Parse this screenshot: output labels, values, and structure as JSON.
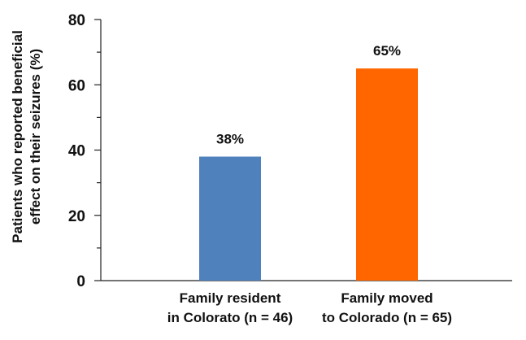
{
  "chart_data": {
    "type": "bar",
    "categories": [
      [
        "Family resident",
        "in Colorato (n = 46)"
      ],
      [
        "Family moved",
        "to Colorado (n = 65)"
      ]
    ],
    "values": [
      38,
      65
    ],
    "data_labels": [
      "38%",
      "65%"
    ],
    "bar_colors": [
      "#4f81bd",
      "#ff6600"
    ],
    "ylabel": [
      "Patients who reported beneficial",
      "effect on their  seizures (%)"
    ],
    "ylim": [
      0,
      80
    ],
    "yticks": [
      0,
      20,
      40,
      60,
      80
    ],
    "ytick_labels": [
      "0",
      "20",
      "40",
      "60",
      "80"
    ],
    "grid": false
  }
}
